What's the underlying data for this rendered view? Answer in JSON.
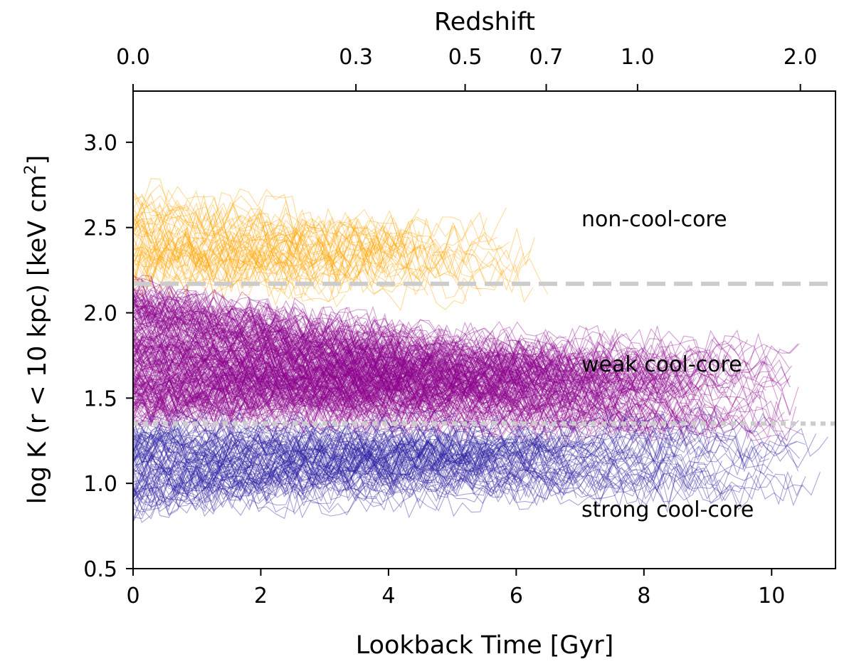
{
  "chart_data": {
    "type": "line",
    "title": "",
    "xlabel": "Lookback Time [Gyr]",
    "ylabel_main": "log K (r < 10 kpc) [keV cm",
    "ylabel_sup": "2",
    "ylabel_end": "]",
    "top_axis_label": "Redshift",
    "xlim": [
      0,
      11
    ],
    "ylim": [
      0.5,
      3.3
    ],
    "x_ticks": [
      0,
      2,
      4,
      6,
      8,
      10
    ],
    "x_tick_labels": [
      "0",
      "2",
      "4",
      "6",
      "8",
      "10"
    ],
    "y_ticks": [
      0.5,
      1.0,
      1.5,
      2.0,
      2.5,
      3.0
    ],
    "y_tick_labels": [
      "0.5",
      "1.0",
      "1.5",
      "2.0",
      "2.5",
      "3.0"
    ],
    "top_ticks": [
      {
        "label": "0.0",
        "lookback_gyr": 0.0
      },
      {
        "label": "0.3",
        "lookback_gyr": 3.49
      },
      {
        "label": "0.5",
        "lookback_gyr": 5.2
      },
      {
        "label": "0.7",
        "lookback_gyr": 6.47
      },
      {
        "label": "1.0",
        "lookback_gyr": 7.9
      },
      {
        "label": "2.0",
        "lookback_gyr": 10.45
      }
    ],
    "thresholds": [
      {
        "name": "ncc-wcc",
        "value": 2.17,
        "style": "dashed",
        "color": "#cccccc"
      },
      {
        "name": "wcc-scc",
        "value": 1.35,
        "style": "dotted",
        "color": "#cccccc"
      }
    ],
    "annotations": [
      {
        "text": "non-cool-core",
        "x": 7.0,
        "y": 2.54
      },
      {
        "text": "weak cool-core",
        "x": 7.0,
        "y": 1.69
      },
      {
        "text": "strong cool-core",
        "x": 7.0,
        "y": 0.84
      }
    ],
    "series": [
      {
        "name": "non-cool-core",
        "color": "#ffa500",
        "count": 55,
        "x_range": [
          0,
          6.5
        ],
        "y_start": [
          2.2,
          2.7
        ],
        "y_end": [
          2.1,
          2.5
        ],
        "noise": 0.13
      },
      {
        "name": "weak cool-core",
        "color": "#8b008b",
        "count": 240,
        "x_range": [
          0,
          10.5
        ],
        "y_start": [
          1.4,
          2.15
        ],
        "y_end": [
          1.3,
          1.8
        ],
        "noise": 0.11
      },
      {
        "name": "strong cool-core",
        "color": "#2a1fa0",
        "count": 90,
        "x_range": [
          0,
          11
        ],
        "y_start": [
          0.85,
          1.35
        ],
        "y_end": [
          0.95,
          1.35
        ],
        "noise": 0.11
      }
    ]
  }
}
